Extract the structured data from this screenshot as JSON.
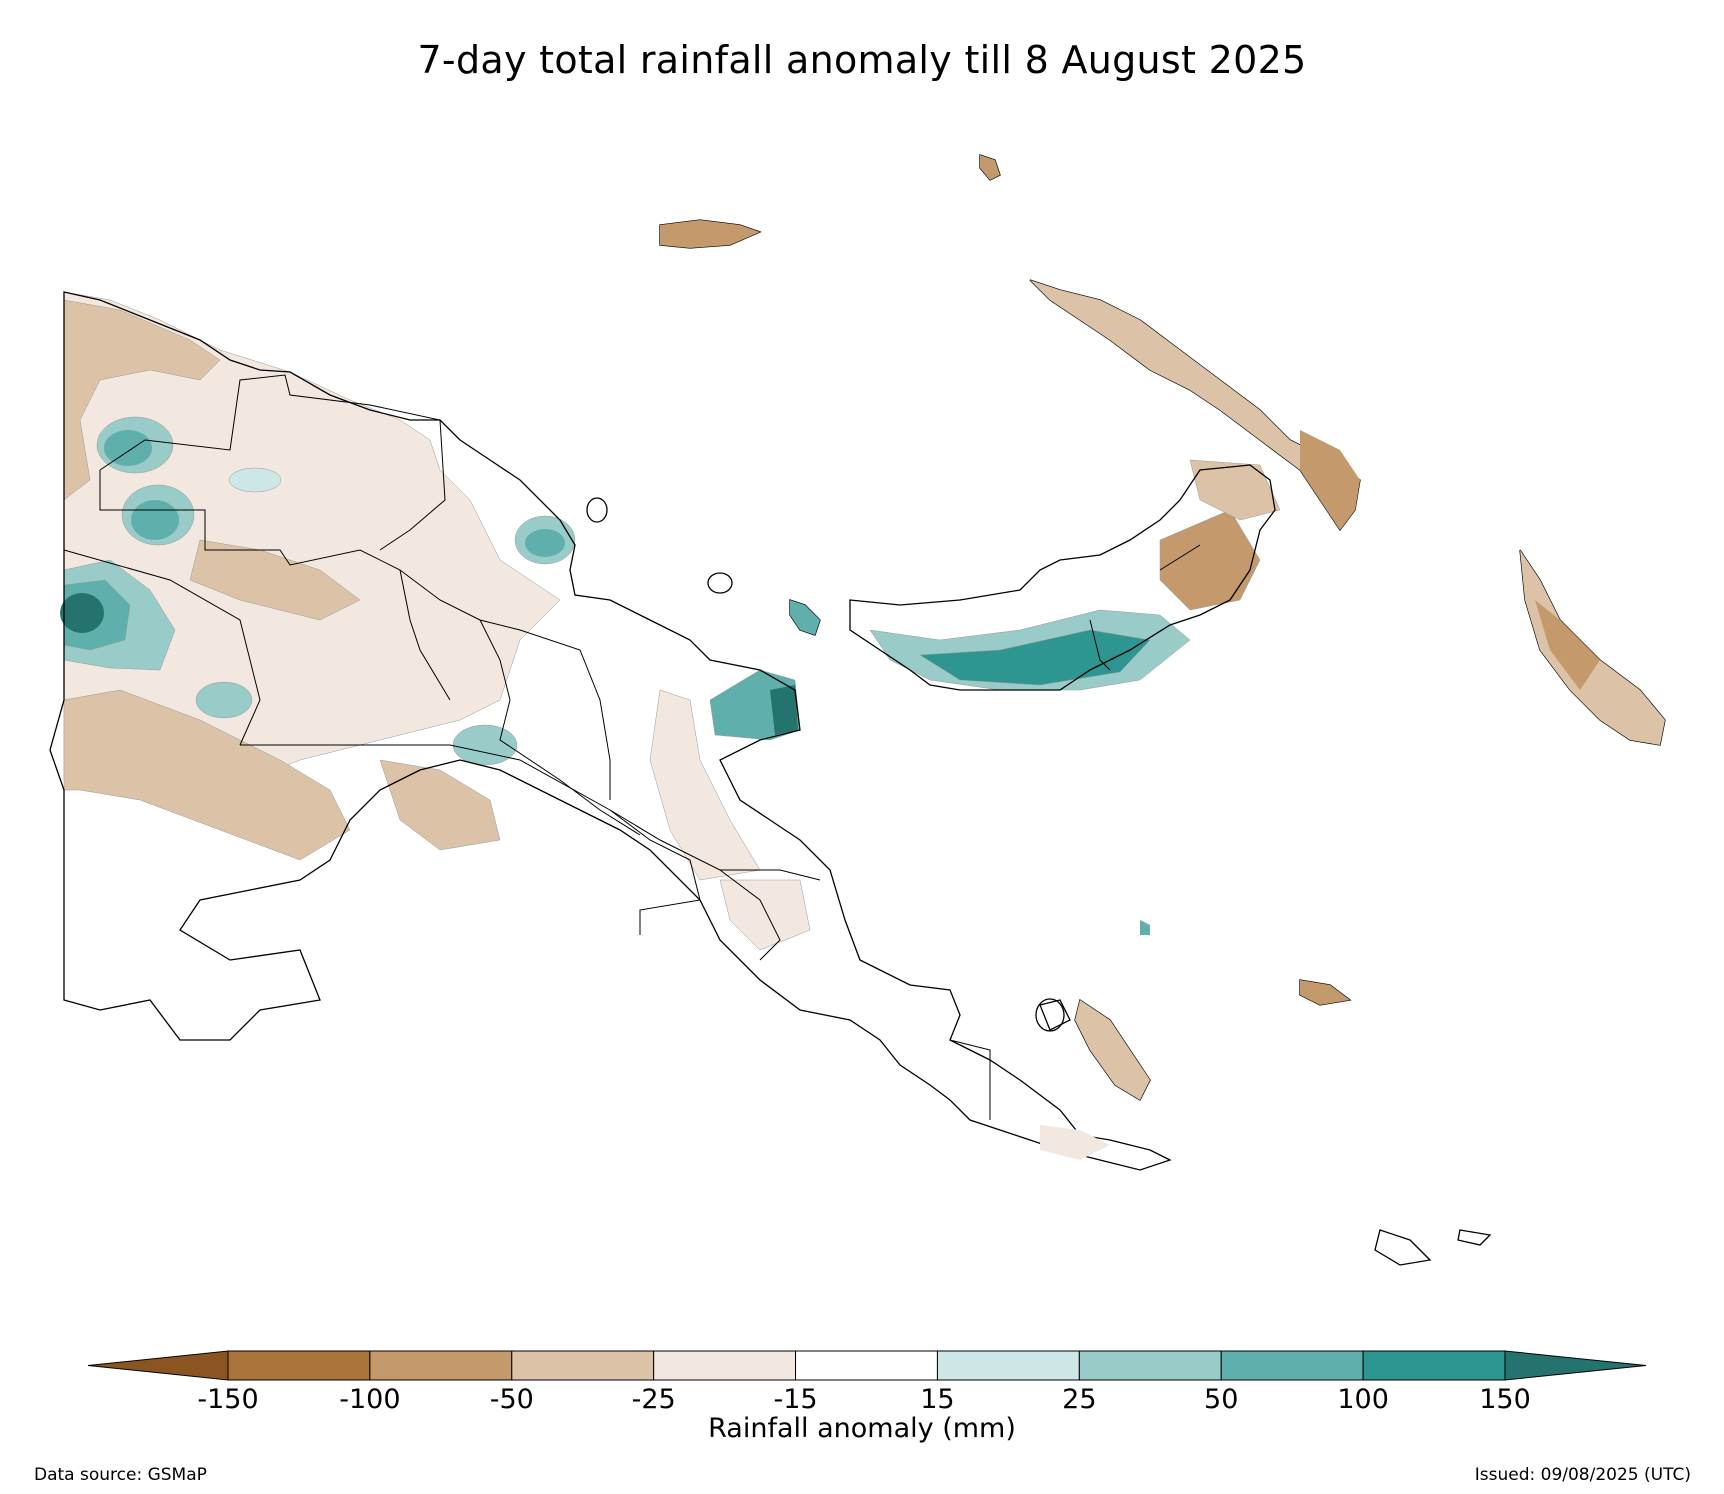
{
  "title": "7-day total rainfall anomaly till 8 August 2025",
  "colorbar": {
    "label": "Rainfall anomaly (mm)",
    "ticks": [
      "-150",
      "-100",
      "-50",
      "-25",
      "-15",
      "15",
      "25",
      "50",
      "100",
      "150"
    ],
    "bins": [
      {
        "range": "< -150",
        "color": "#8a5520"
      },
      {
        "range": "-150 to -100",
        "color": "#a97339"
      },
      {
        "range": "-100 to -50",
        "color": "#c49a6c"
      },
      {
        "range": "-50 to -25",
        "color": "#dcc3a7"
      },
      {
        "range": "-25 to -15",
        "color": "#f2e8df"
      },
      {
        "range": "-15 to 15",
        "color": "#ffffff"
      },
      {
        "range": "15 to 25",
        "color": "#cde7e6"
      },
      {
        "range": "25 to 50",
        "color": "#99cbc8"
      },
      {
        "range": "50 to 100",
        "color": "#5fb0ac"
      },
      {
        "range": "100 to 150",
        "color": "#2e9690"
      },
      {
        "range": "> 150",
        "color": "#24736e"
      }
    ]
  },
  "footer": {
    "source": "Data source: GSMaP",
    "issued": "Issued: 09/08/2025 (UTC)"
  }
}
